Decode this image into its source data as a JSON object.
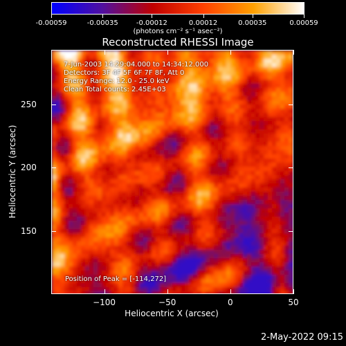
{
  "colorbar": {
    "min": -0.00059,
    "max": 0.00059,
    "tick_values": [
      -0.00059,
      -0.00035,
      -0.00012,
      0.00012,
      0.00035,
      0.00059
    ],
    "tick_labels": [
      "-0.00059",
      "-0.00035",
      "-0.00012",
      "0.00012",
      "0.00035",
      "0.00059"
    ],
    "units_label": "(photons cm⁻² s⁻¹ asec⁻²)",
    "colormap": [
      "#0000ff",
      "#5010a0",
      "#c00000",
      "#ff4000",
      "#ffa000",
      "#ffffff"
    ]
  },
  "chart_data": {
    "type": "heatmap",
    "title": "Reconstructed RHESSI Image",
    "xlabel": "Heliocentric X (arcsec)",
    "ylabel": "Heliocentric Y (arcsec)",
    "xlim": [
      -142,
      50
    ],
    "ylim": [
      100,
      293
    ],
    "x_ticks": [
      -100,
      -50,
      0,
      50
    ],
    "x_tick_labels": [
      "−100",
      "−50",
      "0",
      "50"
    ],
    "y_ticks": [
      150,
      200,
      250
    ],
    "y_tick_labels": [
      "150",
      "200",
      "250"
    ],
    "peak_position": [
      -114,
      272
    ],
    "annotations": {
      "time_range": "7-Jun-2003 14:29:04.000 to 14:34:12.000",
      "detectors": "Detectors: 3F 4F 5F 6F 7F 8F, Att 0",
      "energy_range": "Energy Range: 12.0 - 25.0 keV",
      "clean": "Clean    Total counts: 2.45E+03",
      "peak_text": "Position of Peak = [-114,272]"
    }
  },
  "footer": {
    "datestamp": "2-May-2022 09:15"
  }
}
